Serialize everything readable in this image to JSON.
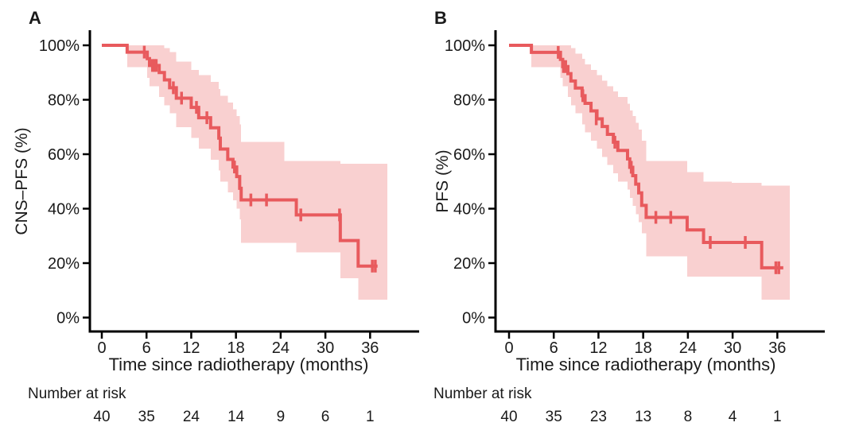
{
  "figure": {
    "background": "#ffffff",
    "text_color": "#1a1a1a",
    "axis_color": "#000000",
    "curve_color": "#e85a5d",
    "ci_band_color": "#f9d0d0"
  },
  "chart_data": [
    {
      "type": "line",
      "subtype": "kaplan-meier-step",
      "title": "A",
      "ylabel": "CNS–PFS (%)",
      "xlabel": "Time since radiotherapy (months)",
      "xlim": [
        0,
        39
      ],
      "ylim": [
        0,
        100
      ],
      "grid": false,
      "x_ticks": [
        0,
        6,
        12,
        18,
        24,
        30,
        36
      ],
      "y_ticks": [
        [
          100,
          "100%"
        ],
        [
          80,
          "80%"
        ],
        [
          60,
          "60%"
        ],
        [
          40,
          "40%"
        ],
        [
          20,
          "20%"
        ],
        [
          0,
          "0%"
        ]
      ],
      "curve_color": "#e85a5d",
      "ci_color": "#f9d0d0",
      "steps": [
        [
          0,
          100
        ],
        [
          3.4,
          97.5
        ],
        [
          6.1,
          95.1
        ],
        [
          6.4,
          92.6
        ],
        [
          7.7,
          90.0
        ],
        [
          8.4,
          87.3
        ],
        [
          9.1,
          84.4
        ],
        [
          10.0,
          80.6
        ],
        [
          12.0,
          77.2
        ],
        [
          13.0,
          73.4
        ],
        [
          14.6,
          69.7
        ],
        [
          15.7,
          65.9
        ],
        [
          15.9,
          61.9
        ],
        [
          16.9,
          58.1
        ],
        [
          17.6,
          55.3
        ],
        [
          18.1,
          51.8
        ],
        [
          18.5,
          47.5
        ],
        [
          18.7,
          43.2
        ],
        [
          26.1,
          37.7
        ],
        [
          32.0,
          28.3
        ],
        [
          34.4,
          18.9
        ]
      ],
      "curve_end": 37.0,
      "censors": [
        [
          5.7,
          97.5
        ],
        [
          6.8,
          92.6
        ],
        [
          7.05,
          92.6
        ],
        [
          7.3,
          92.6
        ],
        [
          9.6,
          84.4
        ],
        [
          10.7,
          80.6
        ],
        [
          12.7,
          77.2
        ],
        [
          14.1,
          73.4
        ],
        [
          17.8,
          55.3
        ],
        [
          20.0,
          43.2
        ],
        [
          22.1,
          43.2
        ],
        [
          26.7,
          37.7
        ],
        [
          31.9,
          37.7
        ],
        [
          36.3,
          18.9
        ],
        [
          36.7,
          18.9
        ]
      ],
      "ci": [
        [
          0,
          100,
          100
        ],
        [
          3.4,
          92,
          100
        ],
        [
          6.1,
          88,
          100
        ],
        [
          6.4,
          85,
          100
        ],
        [
          7.7,
          81,
          100
        ],
        [
          8.4,
          78,
          99
        ],
        [
          9.1,
          75,
          97.5
        ],
        [
          10.0,
          70,
          94
        ],
        [
          12.0,
          66,
          91
        ],
        [
          13.0,
          62,
          89
        ],
        [
          14.6,
          58,
          86.5
        ],
        [
          15.7,
          54,
          84
        ],
        [
          15.9,
          50,
          81.5
        ],
        [
          16.9,
          46,
          79
        ],
        [
          17.6,
          43,
          76.5
        ],
        [
          18.1,
          40,
          74
        ],
        [
          18.5,
          36,
          71
        ],
        [
          18.7,
          27.5,
          64.5
        ],
        [
          24.5,
          27.5,
          57.5
        ],
        [
          26.1,
          24,
          57.5
        ],
        [
          32.0,
          14.5,
          56.5
        ],
        [
          34.4,
          6.5,
          56.5
        ]
      ],
      "ci_end": 38.3,
      "number_at_risk": {
        "header": "Number at risk",
        "times": [
          0,
          6,
          12,
          18,
          24,
          30,
          36
        ],
        "counts": [
          40,
          35,
          24,
          14,
          9,
          6,
          1
        ]
      }
    },
    {
      "type": "line",
      "subtype": "kaplan-meier-step",
      "title": "B",
      "ylabel": "PFS (%)",
      "xlabel": "Time since radiotherapy (months)",
      "xlim": [
        0,
        39
      ],
      "ylim": [
        0,
        100
      ],
      "grid": false,
      "x_ticks": [
        0,
        6,
        12,
        18,
        24,
        30,
        36
      ],
      "y_ticks": [
        [
          100,
          "100%"
        ],
        [
          80,
          "80%"
        ],
        [
          60,
          "60%"
        ],
        [
          40,
          "40%"
        ],
        [
          20,
          "20%"
        ],
        [
          0,
          "0%"
        ]
      ],
      "curve_color": "#e85a5d",
      "ci_color": "#f9d0d0",
      "steps": [
        [
          0,
          100
        ],
        [
          3.0,
          97.4
        ],
        [
          6.9,
          94.8
        ],
        [
          7.2,
          92.2
        ],
        [
          7.9,
          89.6
        ],
        [
          8.3,
          86.9
        ],
        [
          8.9,
          84.3
        ],
        [
          9.8,
          81.5
        ],
        [
          10.2,
          78.7
        ],
        [
          11.0,
          75.9
        ],
        [
          11.8,
          73.0
        ],
        [
          12.5,
          70.2
        ],
        [
          13.2,
          67.3
        ],
        [
          14.0,
          64.4
        ],
        [
          14.6,
          61.4
        ],
        [
          15.9,
          58.3
        ],
        [
          16.2,
          55.2
        ],
        [
          16.6,
          52.1
        ],
        [
          17.0,
          49.0
        ],
        [
          17.4,
          45.8
        ],
        [
          17.8,
          41.2
        ],
        [
          18.4,
          36.8
        ],
        [
          23.9,
          32.2
        ],
        [
          26.1,
          27.6
        ],
        [
          33.9,
          18.3
        ]
      ],
      "curve_end": 36.8,
      "censors": [
        [
          6.6,
          97.4
        ],
        [
          7.3,
          92.2
        ],
        [
          7.6,
          92.2
        ],
        [
          9.9,
          81.5
        ],
        [
          11.7,
          73.0
        ],
        [
          14.2,
          64.4
        ],
        [
          16.4,
          55.2
        ],
        [
          19.7,
          36.8
        ],
        [
          21.7,
          36.8
        ],
        [
          27.0,
          27.6
        ],
        [
          31.7,
          27.6
        ],
        [
          35.8,
          18.3
        ],
        [
          36.2,
          18.3
        ]
      ],
      "ci": [
        [
          0,
          100,
          100
        ],
        [
          3.0,
          92,
          100
        ],
        [
          6.9,
          88,
          100
        ],
        [
          7.2,
          85,
          100
        ],
        [
          7.9,
          81,
          100
        ],
        [
          8.3,
          78,
          99
        ],
        [
          8.9,
          75,
          97
        ],
        [
          9.8,
          71,
          95
        ],
        [
          10.2,
          68,
          93
        ],
        [
          11.0,
          65,
          91
        ],
        [
          11.8,
          62,
          89
        ],
        [
          12.5,
          59,
          87
        ],
        [
          13.2,
          56,
          85
        ],
        [
          14.0,
          53,
          83
        ],
        [
          14.6,
          50,
          81
        ],
        [
          15.9,
          47,
          78.5
        ],
        [
          16.2,
          44,
          76
        ],
        [
          16.6,
          41,
          74
        ],
        [
          17.0,
          38,
          71.5
        ],
        [
          17.4,
          35,
          69
        ],
        [
          17.8,
          31,
          65
        ],
        [
          18.4,
          22.5,
          57.5
        ],
        [
          23.9,
          15,
          53.5
        ],
        [
          26.1,
          15,
          50
        ],
        [
          29.9,
          15,
          49.5
        ],
        [
          33.9,
          6.5,
          48.5
        ]
      ],
      "ci_end": 37.7,
      "number_at_risk": {
        "header": "Number at risk",
        "times": [
          0,
          6,
          12,
          18,
          24,
          30,
          36
        ],
        "counts": [
          40,
          35,
          23,
          13,
          8,
          4,
          1
        ]
      }
    }
  ]
}
